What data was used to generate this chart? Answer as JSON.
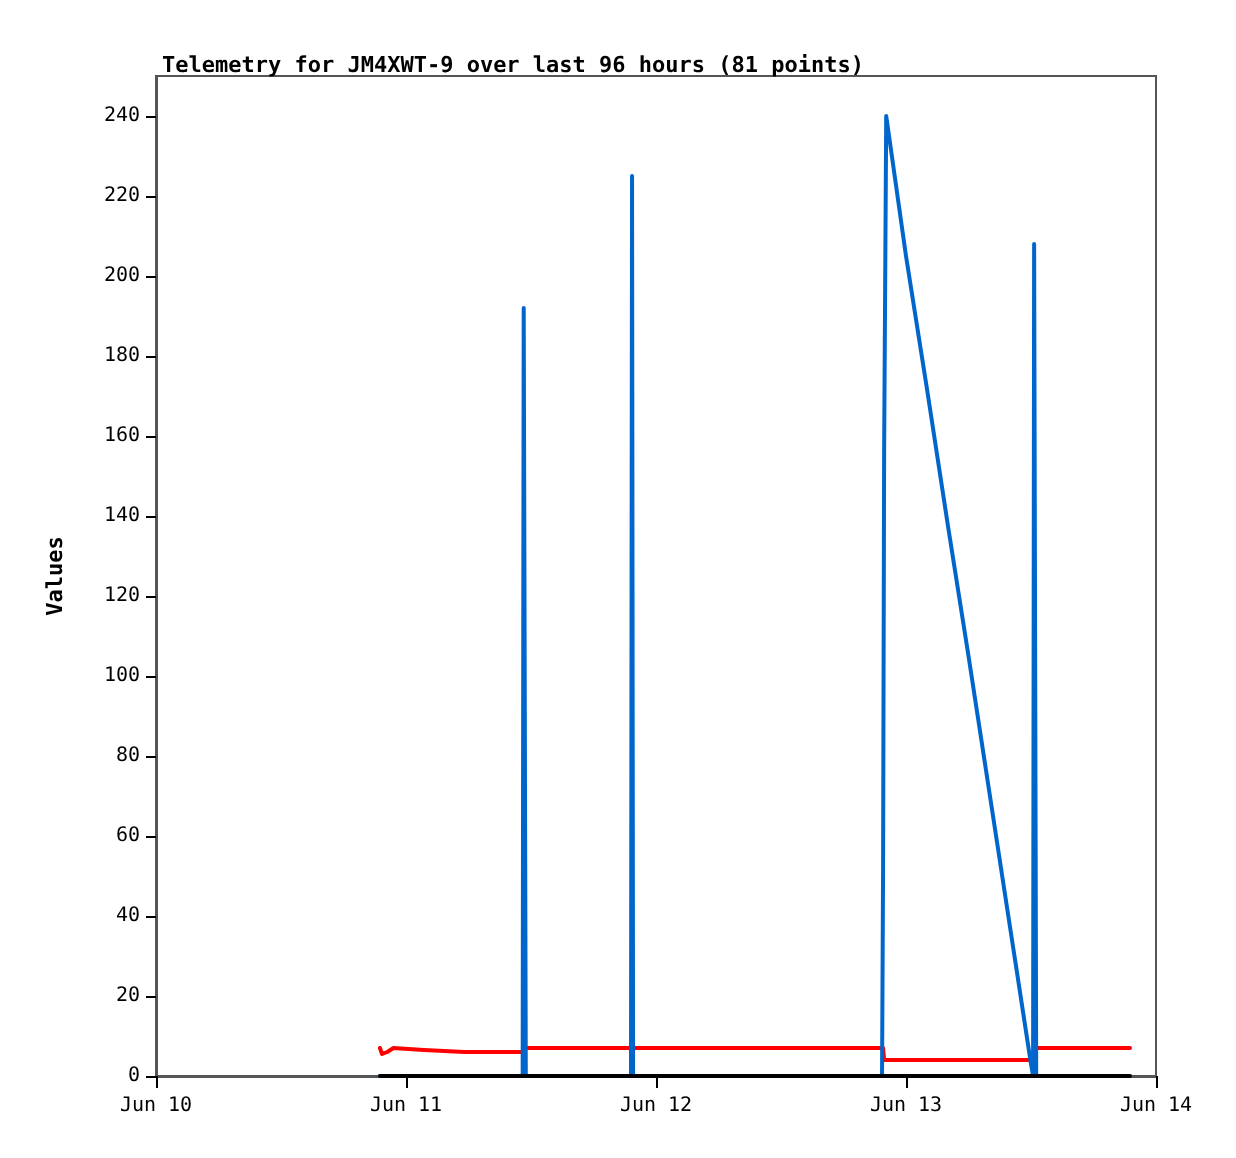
{
  "chart_data": {
    "type": "line",
    "title": "Telemetry for JM4XWT-9 over last 96 hours (81 points)",
    "ylabel": "Values",
    "xlim": [
      "--06-10",
      "--06-14"
    ],
    "xticks": [
      {
        "value": "--06-10",
        "label": "Jun 10"
      },
      {
        "value": "--06-11",
        "label": "Jun 11"
      },
      {
        "value": "--06-12",
        "label": "Jun 12"
      },
      {
        "value": "--06-13",
        "label": "Jun 13"
      },
      {
        "value": "--06-14",
        "label": "Jun 14"
      }
    ],
    "ylim": [
      0,
      250
    ],
    "yticks": [
      0,
      20,
      40,
      60,
      80,
      100,
      120,
      140,
      160,
      180,
      200,
      220,
      240
    ],
    "grid": false,
    "marker": "none",
    "line_style": "solid",
    "series": [
      {
        "color": "#ff0000",
        "x": [
          "--06-10T21:30",
          "--06-10T21:42",
          "--06-10T22:12",
          "--06-10T22:48",
          "--06-11T01:42",
          "--06-11T05:36",
          "--06-11T11:18",
          "--06-11T11:24",
          "--06-12T21:48",
          "--06-12T21:54",
          "--06-13T12:18",
          "--06-13T12:24",
          "--06-13T21:30"
        ],
        "values": [
          7,
          5.5,
          6,
          7,
          6.5,
          6,
          6,
          7,
          7,
          4,
          4,
          7,
          7
        ]
      },
      {
        "color": "#0066cc",
        "x": [
          "--06-10T21:30",
          "--06-11T11:12",
          "--06-11T11:18",
          "--06-11T11:24",
          "--06-11T11:30",
          "--06-11T21:36",
          "--06-11T21:42",
          "--06-11T21:48",
          "--06-12T21:42",
          "--06-12T21:48",
          "--06-12T21:54",
          "--06-12T22:06",
          "--06-13T00:00",
          "--06-13T02:00",
          "--06-13T04:00",
          "--06-13T06:00",
          "--06-13T08:00",
          "--06-13T10:00",
          "--06-13T12:00",
          "--06-13T12:12",
          "--06-13T12:18",
          "--06-13T12:24",
          "--06-13T12:30",
          "--06-13T21:30"
        ],
        "values": [
          0,
          0,
          192,
          96,
          0,
          0,
          225,
          0,
          0,
          52,
          156,
          240,
          205,
          172,
          138,
          105,
          71,
          37,
          3,
          0,
          208,
          104,
          0,
          0
        ]
      },
      {
        "color": "#000000",
        "x": [
          "--06-10T21:30",
          "--06-13T21:30"
        ],
        "values": [
          0,
          0
        ]
      }
    ]
  }
}
